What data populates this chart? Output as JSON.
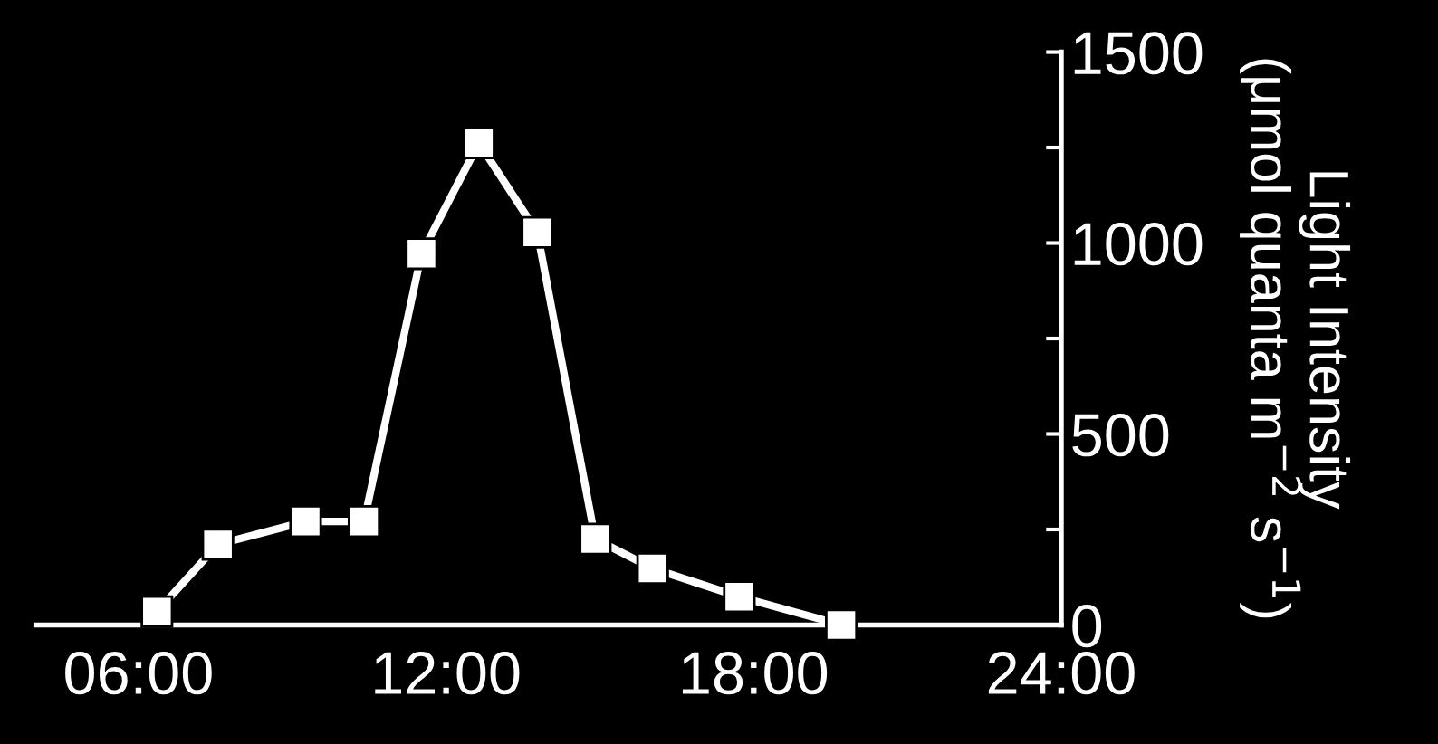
{
  "chart_data": {
    "type": "line",
    "ylabel": "Light Intensity\n(μmol quanta m$^{−2}$ s$^{−1}$)",
    "x": [
      6.36,
      7.55,
      9.26,
      10.4,
      11.52,
      12.64,
      13.78,
      14.91,
      16.03,
      17.72,
      19.71
    ],
    "series": [
      {
        "color": "#ffffff",
        "values": [
          35,
          211,
          271,
          271,
          972,
          1262,
          1028,
          225,
          148,
          74,
          0
        ]
      }
    ],
    "xlim": [
      4,
      24
    ],
    "xticks": [
      {
        "value": 6,
        "label": "06:00"
      },
      {
        "value": 12,
        "label": "12:00"
      },
      {
        "value": 18,
        "label": "18:00"
      },
      {
        "value": 24,
        "label": "24:00"
      }
    ],
    "ylim": [
      0,
      1500
    ],
    "yticks": [
      0,
      {
        "value": 250,
        "label": null
      },
      500,
      {
        "value": 750,
        "label": null
      },
      1000,
      {
        "value": 1250,
        "label": null
      },
      1500
    ],
    "marker": "square",
    "line_style": "solid",
    "grid": false,
    "legend": false
  }
}
